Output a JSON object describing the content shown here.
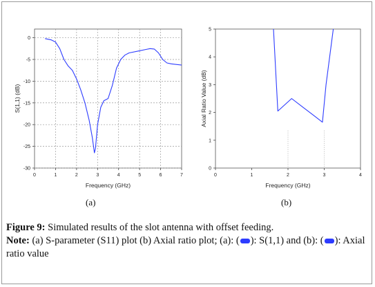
{
  "chart_data": [
    {
      "type": "line",
      "panel": "(a)",
      "xlabel": "Frequency (GHz)",
      "ylabel": "S(1,1) (dB)",
      "xlim": [
        0,
        7
      ],
      "ylim": [
        -30,
        2
      ],
      "xticks": [
        0,
        1,
        2,
        3,
        4,
        5,
        6,
        7
      ],
      "yticks": [
        0,
        -5,
        -10,
        -15,
        -20,
        -25,
        -30
      ],
      "grid": true,
      "series": [
        {
          "color": "#2d3cff",
          "x": [
            0.5,
            0.8,
            1.0,
            1.2,
            1.4,
            1.6,
            1.8,
            2.0,
            2.2,
            2.4,
            2.6,
            2.75,
            2.85,
            2.9,
            3.0,
            3.15,
            3.3,
            3.5,
            3.7,
            3.9,
            4.1,
            4.3,
            4.5,
            5.0,
            5.3,
            5.5,
            5.7,
            5.9,
            6.1,
            6.3,
            6.5,
            7.0
          ],
          "y": [
            -0.2,
            -0.5,
            -1.0,
            -2.5,
            -5.0,
            -6.5,
            -7.5,
            -9.5,
            -12.0,
            -15.0,
            -19.0,
            -23.0,
            -26.5,
            -25.5,
            -20.0,
            -16.0,
            -14.5,
            -14.0,
            -11.0,
            -7.0,
            -5.0,
            -4.0,
            -3.5,
            -3.0,
            -2.7,
            -2.5,
            -2.6,
            -3.5,
            -5.0,
            -5.8,
            -6.0,
            -6.3
          ]
        }
      ]
    },
    {
      "type": "line",
      "panel": "(b)",
      "xlabel": "Frequency (GHz)",
      "ylabel": "Axial Ratio Value (dB)",
      "xlim": [
        0,
        4
      ],
      "ylim": [
        0,
        5
      ],
      "xticks": [
        0,
        1,
        2,
        3,
        4
      ],
      "yticks": [
        0,
        1,
        2,
        3,
        4,
        5
      ],
      "grid": false,
      "series": [
        {
          "color": "#2d3cff",
          "x": [
            1.6,
            1.72,
            2.1,
            2.4,
            2.7,
            2.95,
            3.05,
            3.25
          ],
          "y": [
            5.0,
            2.05,
            2.5,
            2.2,
            1.9,
            1.65,
            3.0,
            5.0
          ]
        }
      ]
    }
  ],
  "panels": {
    "a": "(a)",
    "b": "(b)"
  },
  "caption": {
    "fig_label": "Figure 9:",
    "fig_text": " Simulated results of the slot antenna with offset feeding.",
    "note_label": "Note:",
    "note_text_1": " (a) S-parameter (S11) plot (b) Axial ratio plot; (a): (",
    "note_text_2": "): S(1,1) and (b): (",
    "note_text_3": "): Axial ratio value"
  },
  "colors": {
    "line": "#2d3cff",
    "legend": "#2d3cff"
  }
}
